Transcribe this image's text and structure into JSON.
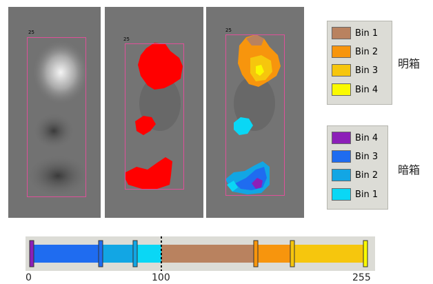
{
  "panels": [
    {
      "roi_label": "25"
    },
    {
      "roi_label": "25"
    },
    {
      "roi_label": "25"
    }
  ],
  "legend_bright": {
    "group_label": "明箱",
    "bins": [
      {
        "label": "Bin 1",
        "color": "#b9825f"
      },
      {
        "label": "Bin 2",
        "color": "#f7950d"
      },
      {
        "label": "Bin 3",
        "color": "#f6c60d"
      },
      {
        "label": "Bin 4",
        "color": "#fafa00"
      }
    ]
  },
  "legend_dark": {
    "group_label": "暗箱",
    "bins": [
      {
        "label": "Bin 4",
        "color": "#8c1fb8"
      },
      {
        "label": "Bin 3",
        "color": "#1f6cf0"
      },
      {
        "label": "Bin 2",
        "color": "#12a6e4"
      },
      {
        "label": "Bin 1",
        "color": "#0ad7f5"
      }
    ]
  },
  "scale": {
    "ticks": [
      "0",
      "100",
      "255"
    ],
    "colors": {
      "purple": "#8c1fb8",
      "blue": "#1f6cf0",
      "cyan_mid": "#12a6e4",
      "cyan": "#0ad7f5",
      "brown": "#b9825f",
      "orange": "#f7950d",
      "gold": "#f6c60d",
      "yellow": "#fafa00"
    }
  }
}
